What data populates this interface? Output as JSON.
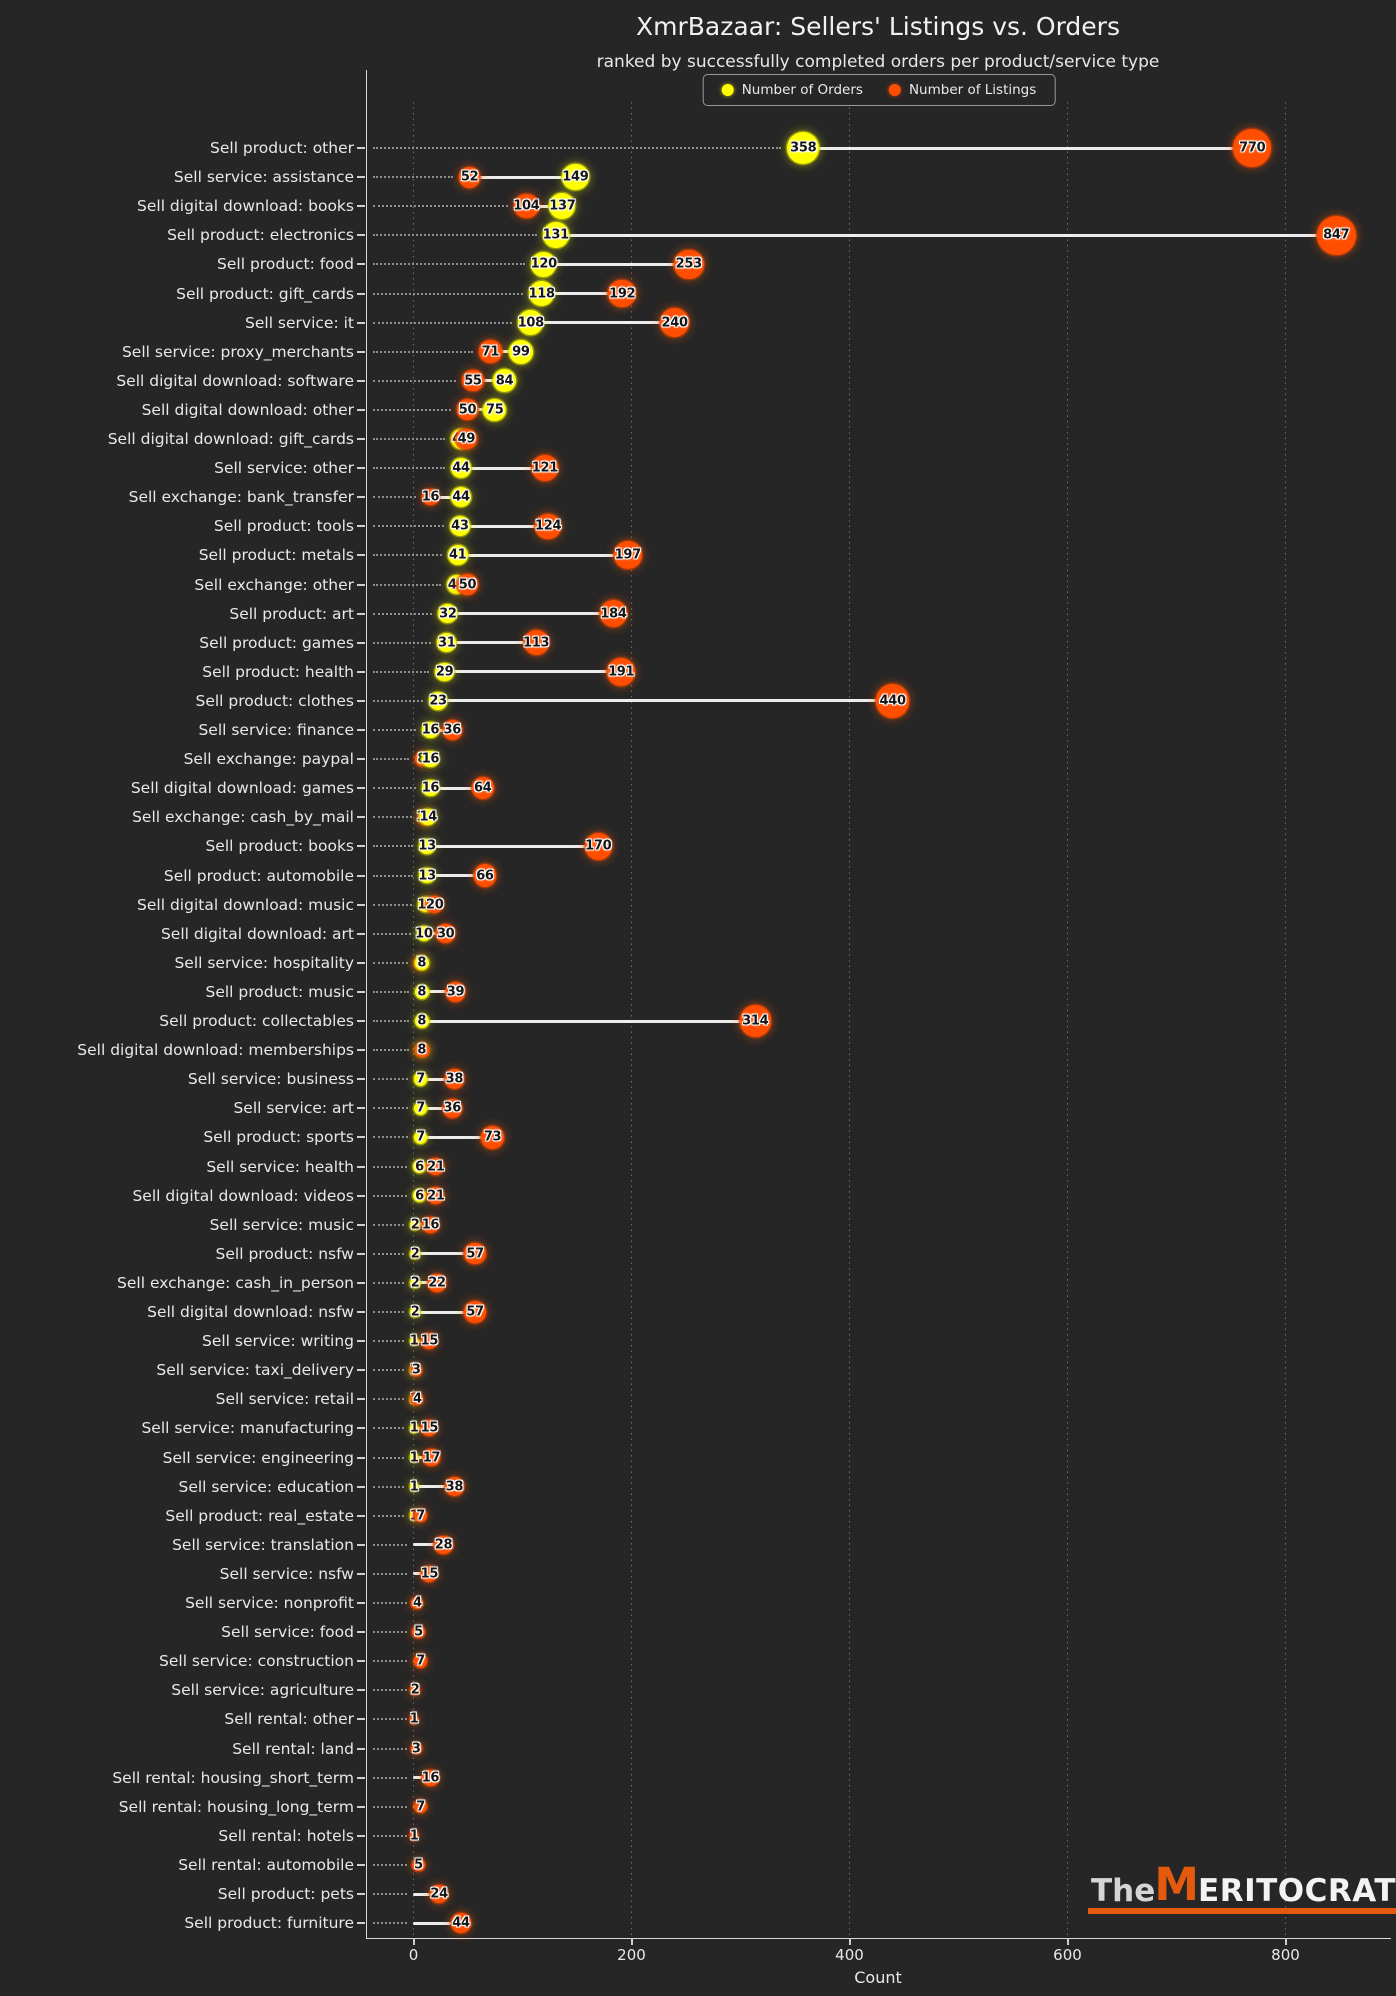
{
  "title": "XmrBazaar: Sellers' Listings vs. Orders",
  "subtitle": "ranked by successfully completed orders per product/service type",
  "legend": {
    "orders_label": "Number of Orders",
    "listings_label": "Number of Listings"
  },
  "xaxis": {
    "label": "Count"
  },
  "watermark": {
    "prefix": "The",
    "m": "M",
    "rest": "ERITOCRAT"
  },
  "colors": {
    "background": "#262626",
    "orders": "#ffff00",
    "listings": "#ff4e00",
    "connector_line": "#ededed",
    "text": "#e8e8e8",
    "watermark_orange": "#e3590e"
  },
  "chart_data": {
    "type": "scatter",
    "variant": "horizontal dumbbell / lollipop",
    "orientation": "horizontal",
    "title": "XmrBazaar: Sellers' Listings vs. Orders",
    "subtitle": "ranked by successfully completed orders per product/service type",
    "xlabel": "Count",
    "ylabel": "",
    "xlim": [
      0,
      880
    ],
    "xticks": [
      0,
      200,
      400,
      600,
      800
    ],
    "grid": "vertical dotted gridlines",
    "legend_position": "upper center",
    "sorted_by": "orders descending",
    "categories": [
      "Sell product: other",
      "Sell service: assistance",
      "Sell digital download: books",
      "Sell product: electronics",
      "Sell product: food",
      "Sell product: gift_cards",
      "Sell service: it",
      "Sell service: proxy_merchants",
      "Sell digital download: software",
      "Sell digital download: other",
      "Sell digital download: gift_cards",
      "Sell service: other",
      "Sell exchange: bank_transfer",
      "Sell product: tools",
      "Sell product: metals",
      "Sell exchange: other",
      "Sell product: art",
      "Sell product: games",
      "Sell product: health",
      "Sell product: clothes",
      "Sell service: finance",
      "Sell exchange: paypal",
      "Sell digital download: games",
      "Sell exchange: cash_by_mail",
      "Sell product: books",
      "Sell product: automobile",
      "Sell digital download: music",
      "Sell digital download: art",
      "Sell service: hospitality",
      "Sell product: music",
      "Sell product: collectables",
      "Sell digital download: memberships",
      "Sell service: business",
      "Sell service: art",
      "Sell product: sports",
      "Sell service: health",
      "Sell digital download: videos",
      "Sell service: music",
      "Sell product: nsfw",
      "Sell exchange: cash_in_person",
      "Sell digital download: nsfw",
      "Sell service: writing",
      "Sell service: taxi_delivery",
      "Sell service: retail",
      "Sell service: manufacturing",
      "Sell service: engineering",
      "Sell service: education",
      "Sell product: real_estate",
      "Sell service: translation",
      "Sell service: nsfw",
      "Sell service: nonprofit",
      "Sell service: food",
      "Sell service: construction",
      "Sell service: agriculture",
      "Sell rental: other",
      "Sell rental: land",
      "Sell rental: housing_short_term",
      "Sell rental: housing_long_term",
      "Sell rental: hotels",
      "Sell rental: automobile",
      "Sell product: pets",
      "Sell product: furniture"
    ],
    "series": [
      {
        "name": "Number of Orders",
        "color": "#ffff00",
        "values": [
          358,
          149,
          137,
          131,
          120,
          118,
          108,
          99,
          84,
          75,
          44,
          44,
          44,
          43,
          41,
          40,
          32,
          31,
          29,
          23,
          16,
          16,
          16,
          14,
          13,
          13,
          12,
          10,
          8,
          8,
          8,
          8,
          7,
          7,
          7,
          6,
          6,
          2,
          2,
          2,
          2,
          1,
          1,
          1,
          1,
          1,
          1,
          1,
          0,
          0,
          0,
          0,
          0,
          0,
          0,
          0,
          0,
          0,
          0,
          0,
          0,
          0
        ]
      },
      {
        "name": "Number of Listings",
        "color": "#ff4e00",
        "values": [
          770,
          52,
          104,
          847,
          253,
          192,
          240,
          71,
          55,
          50,
          49,
          121,
          16,
          124,
          197,
          50,
          184,
          113,
          191,
          440,
          36,
          8,
          64,
          11,
          170,
          66,
          20,
          30,
          7,
          39,
          314,
          8,
          38,
          36,
          73,
          21,
          21,
          16,
          57,
          22,
          57,
          15,
          3,
          4,
          15,
          17,
          38,
          7,
          28,
          15,
          4,
          5,
          7,
          2,
          1,
          3,
          16,
          7,
          1,
          5,
          24,
          44
        ]
      }
    ]
  }
}
